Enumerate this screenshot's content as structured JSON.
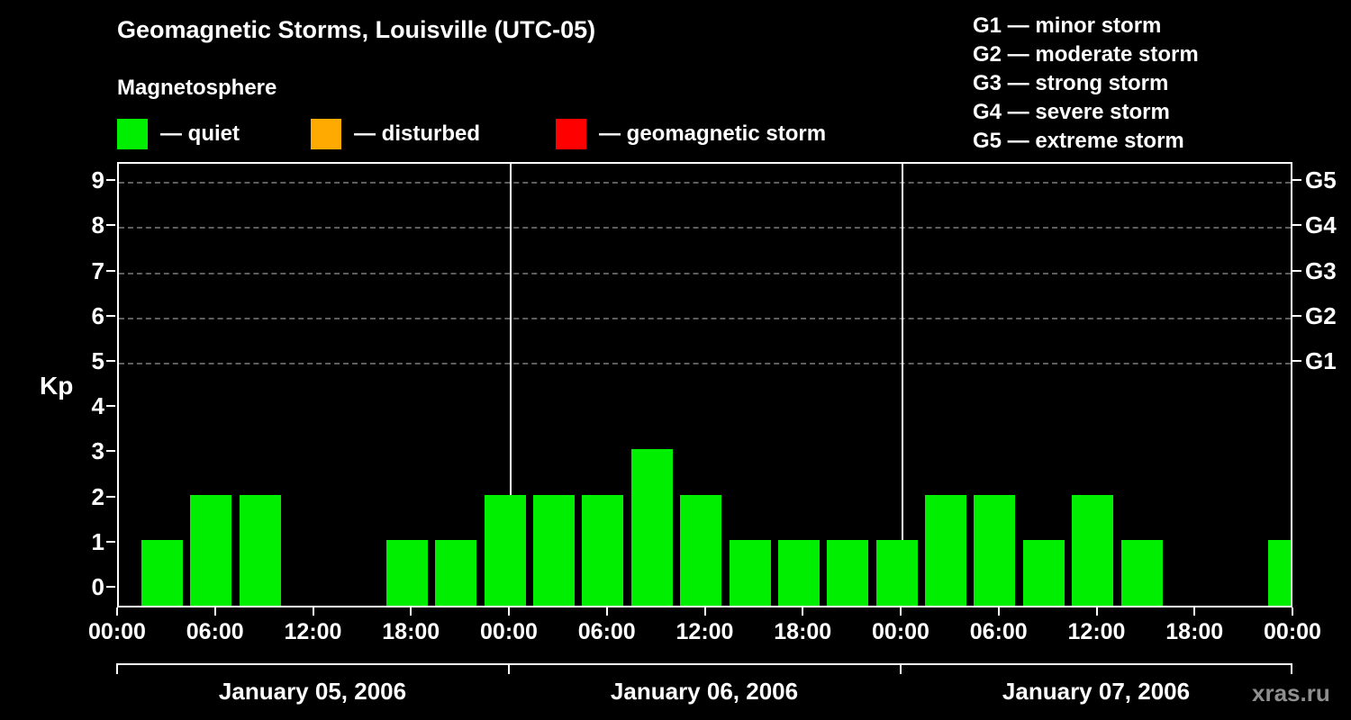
{
  "title": "Geomagnetic Storms, Louisville (UTC-05)",
  "subtitle": "Magnetosphere",
  "legend": {
    "items": [
      {
        "name": "quiet",
        "label": "— quiet",
        "color": "#00ee00"
      },
      {
        "name": "disturbed",
        "label": "— disturbed",
        "color": "#ffaa00"
      },
      {
        "name": "geomagnetic-storm",
        "label": "— geomagnetic storm",
        "color": "#ff0000"
      }
    ]
  },
  "g_legend": [
    "G1 — minor storm",
    "G2 — moderate storm",
    "G3 — strong storm",
    "G4 — severe storm",
    "G5 — extreme storm"
  ],
  "watermark": "xras.ru",
  "chart_data": {
    "type": "bar",
    "title": "Geomagnetic Storms, Louisville (UTC-05)",
    "ylabel": "Kp",
    "xlabel": "",
    "ylim": [
      0,
      9
    ],
    "yticks": [
      0,
      1,
      2,
      3,
      4,
      5,
      6,
      7,
      8,
      9
    ],
    "grid_levels": [
      5,
      6,
      7,
      8,
      9
    ],
    "grid_on": true,
    "bar_color": "#00ee00",
    "interval_hours": 3,
    "x_tick_labels": [
      "00:00",
      "06:00",
      "12:00",
      "18:00",
      "00:00",
      "06:00",
      "12:00",
      "18:00",
      "00:00",
      "06:00",
      "12:00",
      "18:00",
      "00:00"
    ],
    "right_axis_labels": [
      {
        "label": "G1",
        "kp": 5
      },
      {
        "label": "G2",
        "kp": 6
      },
      {
        "label": "G3",
        "kp": 7
      },
      {
        "label": "G4",
        "kp": 8
      },
      {
        "label": "G5",
        "kp": 9
      }
    ],
    "days": [
      {
        "date": "January 05, 2006",
        "values": [
          1,
          2,
          2,
          0,
          0,
          1,
          1,
          2
        ]
      },
      {
        "date": "January 06, 2006",
        "values": [
          2,
          2,
          3,
          2,
          1,
          1,
          1,
          1
        ]
      },
      {
        "date": "January 07, 2006",
        "values": [
          2,
          2,
          1,
          2,
          1,
          0,
          0,
          1
        ]
      }
    ]
  }
}
